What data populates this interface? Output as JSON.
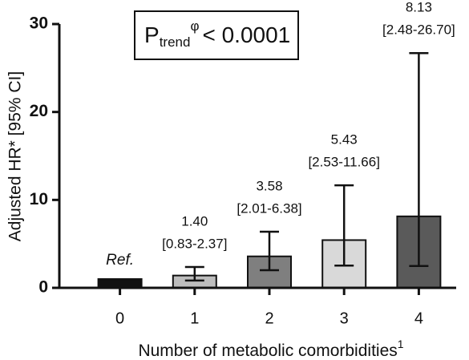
{
  "chart_data": {
    "type": "bar",
    "categories": [
      "0",
      "1",
      "2",
      "3",
      "4"
    ],
    "values": [
      1,
      1.4,
      3.58,
      5.43,
      8.13
    ],
    "value_labels": [
      "Ref.",
      "1.40",
      "3.58",
      "5.43",
      "8.13"
    ],
    "ci_low": [
      null,
      0.83,
      2.01,
      2.53,
      2.48
    ],
    "ci_high": [
      null,
      2.37,
      6.38,
      11.66,
      26.7
    ],
    "ci_labels": [
      null,
      "[0.83-2.37]",
      "[2.01-6.38]",
      "[2.53-11.66]",
      "[2.48-26.70]"
    ],
    "colors": [
      "#111111",
      "#bdbdbd",
      "#7f7f7f",
      "#d9d9d9",
      "#5a5a5a"
    ],
    "ylim": [
      0,
      30
    ],
    "yticks": [
      0,
      10,
      20,
      30
    ],
    "y_label": "Adjusted HR* [95% CI]",
    "x_label": "Number of metabolic comorbidities",
    "x_label_sup": "1",
    "annotation": {
      "main": "P",
      "sub": "trend",
      "sup": "φ",
      "rest": "< 0.0001"
    }
  }
}
